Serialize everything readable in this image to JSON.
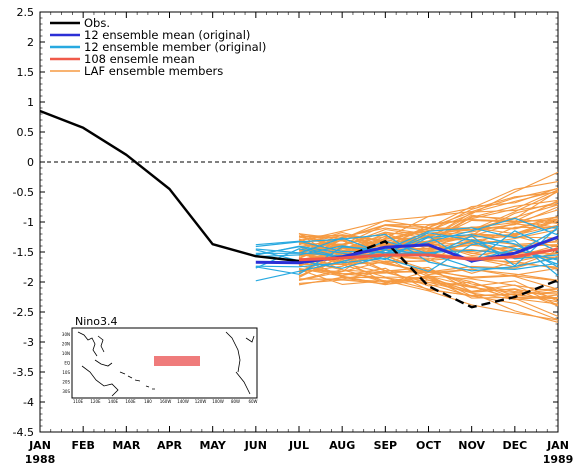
{
  "chart_data": {
    "type": "line",
    "title": "",
    "xlabel": "",
    "ylabel": "",
    "ylim": [
      -4.5,
      2.5
    ],
    "yticks": [
      2.5,
      2,
      1.5,
      1,
      0.5,
      0,
      -0.5,
      -1,
      -1.5,
      -2,
      -2.5,
      -3,
      -3.5,
      -4,
      -4.5
    ],
    "x_ticks": [
      "JAN",
      "FEB",
      "MAR",
      "APR",
      "MAY",
      "JUN",
      "JUL",
      "AUG",
      "SEP",
      "OCT",
      "NOV",
      "DEC",
      "JAN"
    ],
    "x_year_labels": [
      {
        "index": 0,
        "label": "1988"
      },
      {
        "index": 12,
        "label": "1989"
      }
    ],
    "zero_line": "dashed",
    "legend_position": "top-left",
    "legend": [
      {
        "label": "Obs.",
        "color": "#000000"
      },
      {
        "label": "12 ensemble mean (original)",
        "color": "#2b2fd6"
      },
      {
        "label": "12 ensemble member (original)",
        "color": "#28a9e0"
      },
      {
        "label": "108 ensemle mean",
        "color": "#f05a4a"
      },
      {
        "label": "LAF ensemble members",
        "color": "#f59a42"
      }
    ],
    "series": [
      {
        "name": "Obs.",
        "color": "#000000",
        "x": [
          0,
          1,
          2,
          3,
          4,
          5,
          6
        ],
        "values": [
          0.85,
          0.57,
          0.12,
          -0.45,
          -1.37,
          -1.57,
          -1.65
        ]
      },
      {
        "name": "Obs.",
        "color": "#000000",
        "style": "dashed",
        "x": [
          6,
          7,
          8,
          9,
          10,
          11,
          12
        ],
        "values": [
          -1.65,
          -1.6,
          -1.32,
          -2.07,
          -2.42,
          -2.25,
          -1.97
        ]
      },
      {
        "name": "12 ensemble mean (original)",
        "color": "#2b2fd6",
        "x": [
          5,
          6,
          7,
          8,
          9,
          10,
          11,
          12
        ],
        "values": [
          -1.67,
          -1.68,
          -1.58,
          -1.42,
          -1.38,
          -1.65,
          -1.52,
          -1.25
        ]
      },
      {
        "name": "108 ensemle mean",
        "color": "#f05a4a",
        "x": [
          6,
          7,
          8,
          9,
          10,
          11,
          12
        ],
        "values": [
          -1.63,
          -1.6,
          -1.55,
          -1.55,
          -1.62,
          -1.58,
          -1.45
        ]
      }
    ],
    "ensemble_members": {
      "x": [
        6,
        7,
        8,
        9,
        10,
        11,
        12
      ],
      "orange_count": 70,
      "blue_count": 12,
      "orange_color": "#f59a42",
      "blue_color": "#28a9e0",
      "orange_range_start": [
        -1.95,
        -1.3
      ],
      "orange_range_end": [
        -2.55,
        -0.25
      ],
      "blue_range_start": [
        -1.85,
        -1.35
      ]
    },
    "inset": {
      "title": "Nino3.4",
      "lon_labels": [
        "110E",
        "120E",
        "140E",
        "160E",
        "180",
        "160W",
        "140W",
        "120W",
        "100W",
        "80W",
        "60W"
      ],
      "lat_labels": [
        "30N",
        "20N",
        "10N",
        "EQ",
        "10S",
        "20S",
        "30S"
      ],
      "box_color": "#ef7b7b"
    }
  }
}
